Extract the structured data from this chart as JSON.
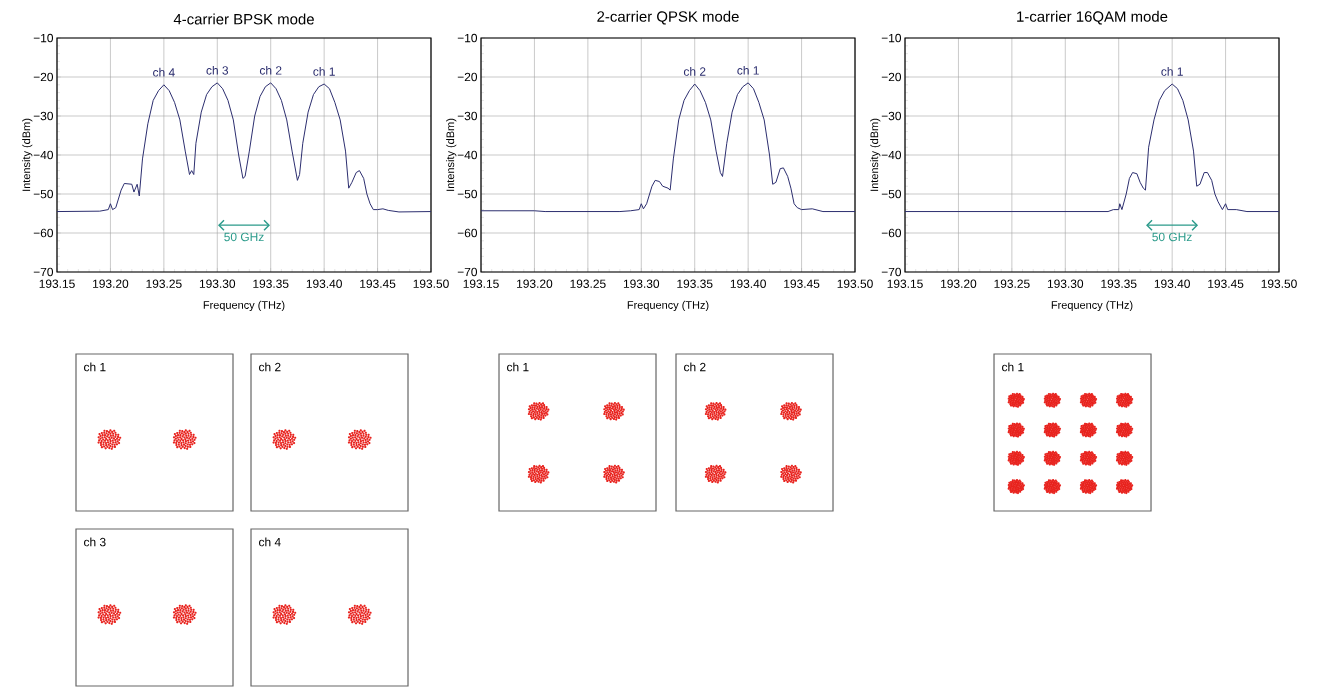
{
  "chart_data": [
    {
      "type": "line",
      "title": "4-carrier BPSK mode",
      "xlabel": "Frequency (THz)",
      "ylabel": "Intensity (dBm)",
      "color": "#2b2d6e",
      "grid": true,
      "xlim": [
        193.15,
        193.5
      ],
      "ylim": [
        -70,
        -10
      ],
      "xticks": [
        193.15,
        {
          "value": 193.2,
          "label": "193.20"
        },
        193.25,
        {
          "value": 193.3,
          "label": "193.30"
        },
        193.35,
        {
          "value": 193.4,
          "label": "193.40"
        },
        193.45,
        {
          "value": 193.5,
          "label": "193.50"
        }
      ],
      "yticks": [
        {
          "value": -70,
          "label": "−70"
        },
        {
          "value": -60,
          "label": "−60"
        },
        {
          "value": -50,
          "label": "−50"
        },
        {
          "value": -40,
          "label": "−40"
        },
        {
          "value": -30,
          "label": "−30"
        },
        {
          "value": -20,
          "label": "−20"
        },
        {
          "value": -10,
          "label": "−10"
        }
      ],
      "annotations": [
        {
          "text": "ch 4",
          "x": 193.25,
          "y": -22
        },
        {
          "text": "ch 3",
          "x": 193.3,
          "y": -21.5
        },
        {
          "text": "ch 2",
          "x": 193.35,
          "y": -21.5
        },
        {
          "text": "ch 1",
          "x": 193.4,
          "y": -21.8
        },
        "50 GHz"
      ],
      "x": [
        193.15,
        193.19,
        193.198,
        193.2,
        193.202,
        193.205,
        193.21,
        193.213,
        193.22,
        193.222,
        193.225,
        193.227,
        193.23,
        193.235,
        193.24,
        193.245,
        193.25,
        193.255,
        193.26,
        193.265,
        193.27,
        193.274,
        193.276,
        193.278,
        193.28,
        193.285,
        193.29,
        193.295,
        193.3,
        193.305,
        193.31,
        193.315,
        193.32,
        193.324,
        193.326,
        193.33,
        193.335,
        193.34,
        193.345,
        193.35,
        193.355,
        193.36,
        193.365,
        193.37,
        193.375,
        193.377,
        193.38,
        193.385,
        193.39,
        193.395,
        193.4,
        193.405,
        193.41,
        193.415,
        193.42,
        193.423,
        193.426,
        193.43,
        193.433,
        193.437,
        193.44,
        193.443,
        193.446,
        193.45,
        193.455,
        193.46,
        193.47,
        193.5
      ],
      "values": [
        -54.5,
        -54.4,
        -54,
        -52.5,
        -54,
        -53.5,
        -49,
        -47.3,
        -47.5,
        -49.5,
        -47.5,
        -50.5,
        -41,
        -32,
        -26,
        -23.5,
        -22,
        -23.5,
        -26.5,
        -31,
        -39,
        -45,
        -44,
        -45,
        -37,
        -29,
        -24.5,
        -22.5,
        -21.5,
        -23,
        -26,
        -31,
        -40,
        -46,
        -45.5,
        -39,
        -30,
        -25,
        -22.5,
        -21.5,
        -23,
        -26,
        -31,
        -39,
        -46.5,
        -45,
        -37,
        -29,
        -24.5,
        -22.5,
        -21.8,
        -23,
        -26.5,
        -31,
        -39,
        -48.5,
        -47,
        -44.5,
        -44,
        -46,
        -50,
        -52.5,
        -54,
        -54,
        -53.8,
        -54.2,
        -54.6,
        -54.5
      ]
    },
    {
      "type": "line",
      "title": "2-carrier QPSK mode",
      "xlabel": "Frequency (THz)",
      "ylabel": "Intensity (dBm)",
      "color": "#2b2d6e",
      "grid": true,
      "xlim": [
        193.15,
        193.5
      ],
      "ylim": [
        -70,
        -10
      ],
      "xticks": [
        193.15,
        {
          "value": 193.2,
          "label": "193.20"
        },
        193.25,
        {
          "value": 193.3,
          "label": "193.30"
        },
        193.35,
        {
          "value": 193.4,
          "label": "193.40"
        },
        193.45,
        {
          "value": 193.5,
          "label": "193.50"
        }
      ],
      "yticks": [
        {
          "value": -70,
          "label": "−70"
        },
        {
          "value": -60,
          "label": "−60"
        },
        {
          "value": -50,
          "label": "−50"
        },
        {
          "value": -40,
          "label": "−40"
        },
        {
          "value": -30,
          "label": "−30"
        },
        {
          "value": -20,
          "label": "−20"
        },
        {
          "value": -10,
          "label": "−10"
        }
      ],
      "annotations": [
        {
          "text": "ch 2",
          "x": 193.35,
          "y": -21.8
        },
        {
          "text": "ch 1",
          "x": 193.4,
          "y": -21.5
        }
      ],
      "x": [
        193.15,
        193.2,
        193.21,
        193.28,
        193.29,
        193.298,
        193.3,
        193.302,
        193.305,
        193.31,
        193.313,
        193.317,
        193.32,
        193.325,
        193.327,
        193.33,
        193.335,
        193.34,
        193.345,
        193.35,
        193.355,
        193.36,
        193.365,
        193.37,
        193.374,
        193.376,
        193.38,
        193.385,
        193.39,
        193.395,
        193.4,
        193.405,
        193.41,
        193.415,
        193.42,
        193.423,
        193.426,
        193.43,
        193.433,
        193.437,
        193.44,
        193.443,
        193.446,
        193.45,
        193.46,
        193.47,
        193.5
      ],
      "values": [
        -54.3,
        -54.3,
        -54.5,
        -54.5,
        -54.3,
        -54,
        -52.5,
        -53.8,
        -52.5,
        -48,
        -46.5,
        -46.8,
        -48,
        -48.5,
        -49,
        -41,
        -31,
        -26,
        -23.5,
        -21.8,
        -23.5,
        -26.5,
        -31,
        -39,
        -44.5,
        -45.5,
        -37,
        -29,
        -24.5,
        -22.5,
        -21.5,
        -23,
        -26.5,
        -31,
        -40,
        -47.5,
        -47,
        -43.5,
        -43.3,
        -45.5,
        -48.5,
        -52.5,
        -53.5,
        -54,
        -53.8,
        -54.5,
        -54.5
      ]
    },
    {
      "type": "line",
      "title": "1-carrier 16QAM mode",
      "xlabel": "Frequency (THz)",
      "ylabel": "Intensity (dBm)",
      "color": "#2b2d6e",
      "grid": true,
      "xlim": [
        193.15,
        193.5
      ],
      "ylim": [
        -70,
        -10
      ],
      "xticks": [
        193.15,
        {
          "value": 193.2,
          "label": "193.20"
        },
        193.25,
        {
          "value": 193.3,
          "label": "193.30"
        },
        193.35,
        {
          "value": 193.4,
          "label": "193.40"
        },
        193.45,
        {
          "value": 193.5,
          "label": "193.50"
        }
      ],
      "yticks": [
        {
          "value": -70,
          "label": "−70"
        },
        {
          "value": -60,
          "label": "−60"
        },
        {
          "value": -50,
          "label": "−50"
        },
        {
          "value": -40,
          "label": "−40"
        },
        {
          "value": -30,
          "label": "−30"
        },
        {
          "value": -20,
          "label": "−20"
        },
        {
          "value": -10,
          "label": "−10"
        }
      ],
      "annotations": [
        {
          "text": "ch 1",
          "x": 193.4,
          "y": -21.8
        },
        "50 GHz"
      ],
      "x": [
        193.15,
        193.34,
        193.345,
        193.35,
        193.351,
        193.353,
        193.357,
        193.36,
        193.363,
        193.367,
        193.37,
        193.373,
        193.375,
        193.378,
        193.383,
        193.388,
        193.393,
        193.4,
        193.405,
        193.41,
        193.415,
        193.42,
        193.423,
        193.426,
        193.43,
        193.433,
        193.437,
        193.44,
        193.443,
        193.447,
        193.45,
        193.452,
        193.46,
        193.47,
        193.5
      ],
      "values": [
        -54.5,
        -54.5,
        -54,
        -54,
        -52.5,
        -54,
        -50,
        -46,
        -44.5,
        -44.8,
        -47,
        -48.5,
        -49,
        -38,
        -31,
        -26,
        -23.5,
        -21.8,
        -23,
        -26,
        -31,
        -39,
        -48,
        -47.5,
        -44.5,
        -44.5,
        -46.5,
        -50,
        -52,
        -54,
        -52.5,
        -54,
        -54,
        -54.5,
        -54.5
      ]
    },
    {
      "type": "other",
      "title": "ch 1"
    },
    {
      "type": "other",
      "title": "ch 2"
    },
    {
      "type": "other",
      "title": "ch 3"
    },
    {
      "type": "other",
      "title": "ch 4"
    },
    {
      "type": "other",
      "title": "ch 1"
    },
    {
      "type": "other",
      "title": "ch 2"
    },
    {
      "type": "other",
      "title": "ch 1"
    }
  ]
}
